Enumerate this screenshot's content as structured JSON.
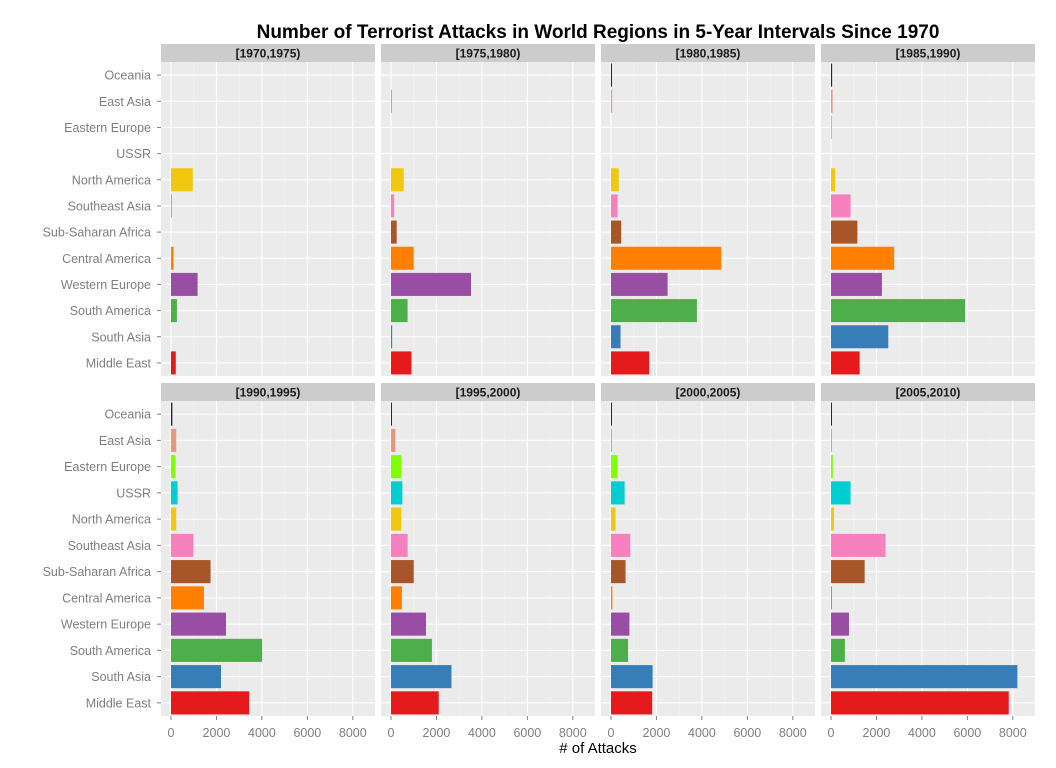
{
  "chart_data": {
    "type": "bar",
    "orientation": "horizontal",
    "title": "Number of Terrorist Attacks in World Regions in 5-Year Intervals Since 1970",
    "xlabel": "# of Attacks",
    "ylabel": "",
    "xlim": [
      0,
      8800
    ],
    "x_ticks": [
      0,
      2000,
      4000,
      6000,
      8000
    ],
    "x_tick_labels": [
      "0",
      "2000",
      "4000",
      "6000",
      "8000"
    ],
    "grid": true,
    "legend": "none",
    "categories": [
      "Oceania",
      "East Asia",
      "Eastern Europe",
      "USSR",
      "North America",
      "Southeast Asia",
      "Sub-Saharan Africa",
      "Central America",
      "Western Europe",
      "South America",
      "South Asia",
      "Middle East"
    ],
    "colors": {
      "Oceania": "#1b2a3a",
      "East Asia": "#e8977c",
      "Eastern Europe": "#7fff00",
      "USSR": "#00ced1",
      "North America": "#f2c80f",
      "Southeast Asia": "#f781bf",
      "Sub-Saharan Africa": "#a65628",
      "Central America": "#ff7f00",
      "Western Europe": "#984ea3",
      "South America": "#4daf4a",
      "South Asia": "#377eb8",
      "Middle East": "#e41a1c"
    },
    "panels": [
      {
        "label": "[1970,1975)",
        "values": [
          0,
          0,
          0,
          0,
          960,
          40,
          0,
          110,
          1170,
          260,
          0,
          210
        ]
      },
      {
        "label": "[1975,1980)",
        "values": [
          0,
          40,
          0,
          0,
          560,
          140,
          250,
          1000,
          3520,
          730,
          50,
          900
        ]
      },
      {
        "label": "[1980,1985)",
        "values": [
          30,
          50,
          0,
          0,
          340,
          290,
          450,
          4850,
          2490,
          3780,
          420,
          1680
        ]
      },
      {
        "label": "[1985,1990)",
        "values": [
          50,
          70,
          40,
          0,
          180,
          860,
          1160,
          2780,
          2240,
          5900,
          2520,
          1260
        ]
      },
      {
        "label": "[1990,1995)",
        "values": [
          60,
          230,
          190,
          290,
          230,
          990,
          1740,
          1450,
          2420,
          4010,
          2200,
          3440
        ]
      },
      {
        "label": "[1995,2000)",
        "values": [
          40,
          190,
          450,
          500,
          450,
          730,
          1000,
          480,
          1540,
          1800,
          2660,
          2100
        ]
      },
      {
        "label": "[2000,2005)",
        "values": [
          10,
          30,
          280,
          600,
          200,
          850,
          640,
          60,
          810,
          750,
          1830,
          1810
        ]
      },
      {
        "label": "[2005,2010)",
        "values": [
          10,
          30,
          80,
          860,
          130,
          2400,
          1480,
          40,
          790,
          610,
          8200,
          7820
        ]
      }
    ]
  }
}
